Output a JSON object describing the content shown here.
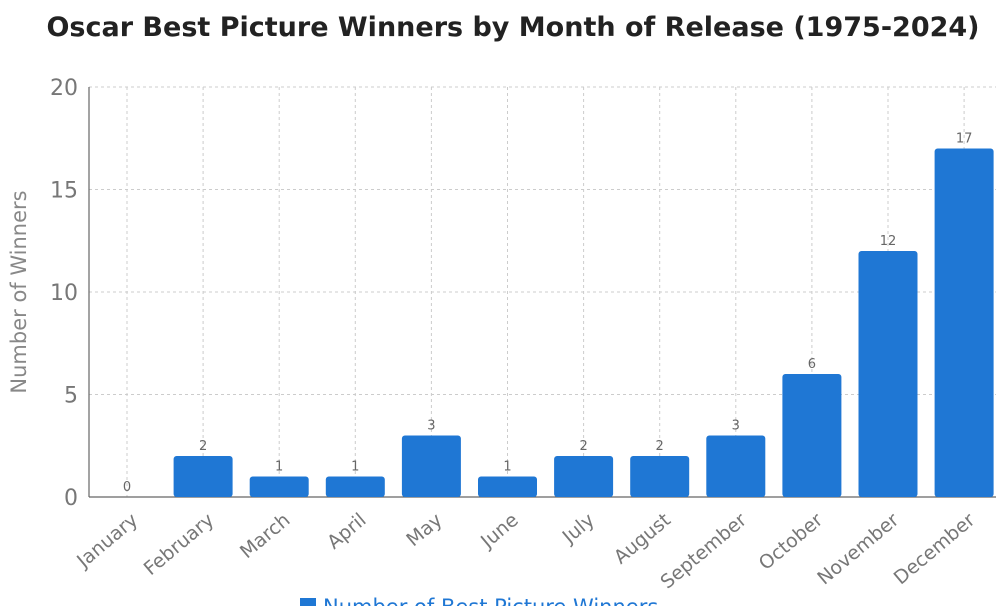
{
  "chart_data": {
    "type": "bar",
    "title": "Oscar Best Picture Winners by Month of Release (1975-2024)",
    "ylabel": "Number of Winners",
    "xlabel": "",
    "categories": [
      "January",
      "February",
      "March",
      "April",
      "May",
      "June",
      "July",
      "August",
      "September",
      "October",
      "November",
      "December"
    ],
    "series": [
      {
        "name": "Number of Best Picture Winners",
        "values": [
          0,
          2,
          1,
          1,
          3,
          1,
          2,
          2,
          3,
          6,
          12,
          17
        ]
      }
    ],
    "ylim": [
      0,
      20
    ],
    "yticks": [
      0,
      5,
      10,
      15,
      20
    ],
    "grid": true,
    "legend_position": "bottom",
    "bar_color": "#1f77d4"
  }
}
